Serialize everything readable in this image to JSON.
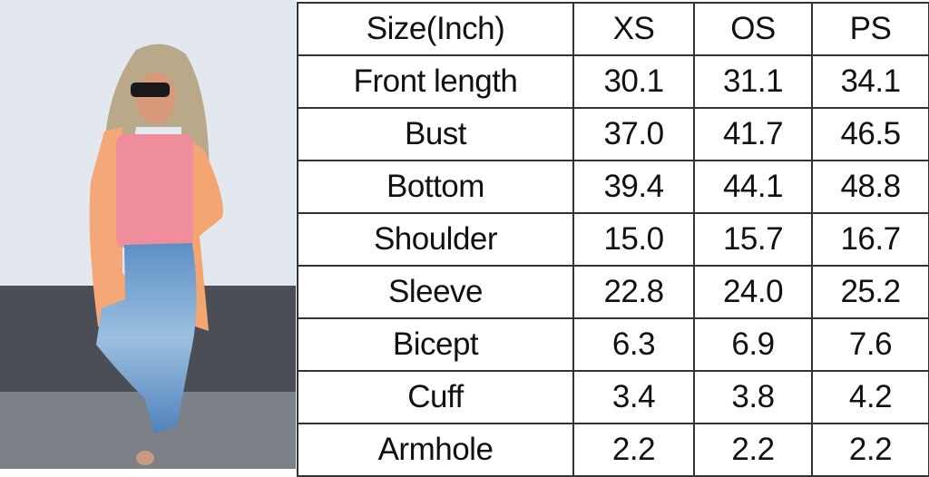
{
  "photo": {
    "subject": "model-wearing-cardigan"
  },
  "size_chart": {
    "header": [
      "Size(Inch)",
      "XS",
      "OS",
      "PS"
    ],
    "rows": [
      [
        "Front length",
        "30.1",
        "31.1",
        "34.1"
      ],
      [
        "Bust",
        "37.0",
        "41.7",
        "46.5"
      ],
      [
        "Bottom",
        "39.4",
        "44.1",
        "48.8"
      ],
      [
        "Shoulder",
        "15.0",
        "15.7",
        "16.7"
      ],
      [
        "Sleeve",
        "22.8",
        "24.0",
        "25.2"
      ],
      [
        "Bicept",
        "6.3",
        "6.9",
        "7.6"
      ],
      [
        "Cuff",
        "3.4",
        "3.8",
        "4.2"
      ],
      [
        "Armhole",
        "2.2",
        "2.2",
        "2.2"
      ]
    ]
  }
}
